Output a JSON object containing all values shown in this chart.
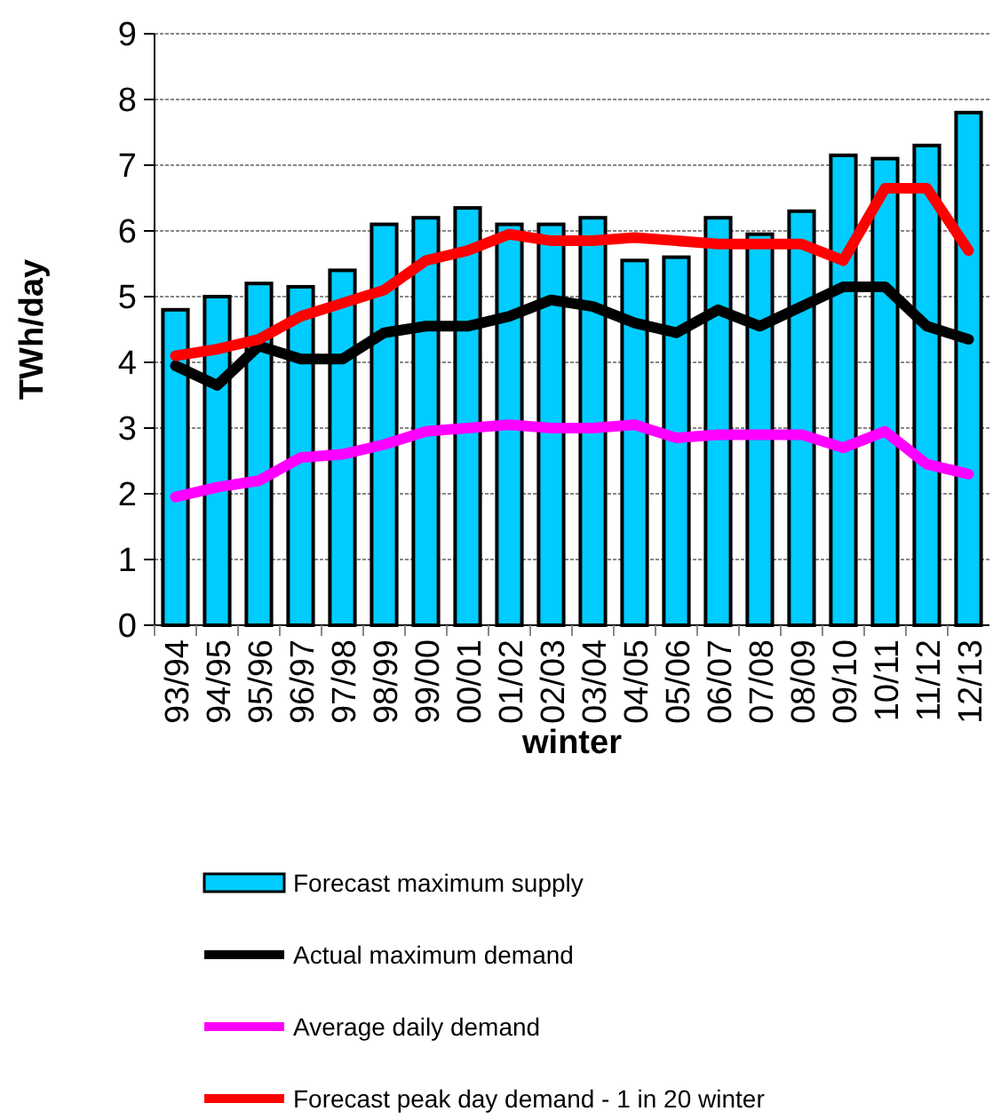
{
  "chart_data": {
    "type": "bar",
    "xlabel": "winter",
    "ylabel": "TWh/day",
    "categories": [
      "93/94",
      "94/95",
      "95/96",
      "96/97",
      "97/98",
      "98/99",
      "99/00",
      "00/01",
      "01/02",
      "02/03",
      "03/04",
      "04/05",
      "05/06",
      "06/07",
      "07/08",
      "08/09",
      "09/10",
      "10/11",
      "11/12",
      "12/13"
    ],
    "series": [
      {
        "name": "Forecast maximum supply",
        "color": "#00ccff",
        "values": [
          4.8,
          5.0,
          5.2,
          5.15,
          5.4,
          6.1,
          6.2,
          6.35,
          6.1,
          6.1,
          6.2,
          5.55,
          5.6,
          6.2,
          5.95,
          6.3,
          7.15,
          7.1,
          7.3,
          7.8
        ]
      },
      {
        "name": "Actual maximum demand",
        "type": "line",
        "color": "#000000",
        "values": [
          3.95,
          3.65,
          4.25,
          4.05,
          4.05,
          4.45,
          4.55,
          4.55,
          4.7,
          4.95,
          4.85,
          4.6,
          4.45,
          4.8,
          4.55,
          4.85,
          5.15,
          5.15,
          4.55,
          4.35
        ]
      },
      {
        "name": "Average daily demand",
        "type": "line",
        "color": "#ff00ff",
        "values": [
          1.95,
          2.1,
          2.2,
          2.55,
          2.6,
          2.75,
          2.95,
          3.0,
          3.05,
          3.0,
          3.0,
          3.05,
          2.85,
          2.9,
          2.9,
          2.9,
          2.7,
          2.95,
          2.45,
          2.3
        ]
      },
      {
        "name": "Forecast peak day demand - 1 in 20 winter",
        "type": "line",
        "color": "#ff0000",
        "values": [
          4.1,
          4.2,
          4.35,
          4.7,
          4.9,
          5.1,
          5.55,
          5.7,
          5.95,
          5.85,
          5.85,
          5.9,
          5.85,
          5.8,
          5.8,
          5.8,
          5.55,
          6.65,
          6.65,
          5.7
        ]
      }
    ],
    "ylim": [
      0,
      9
    ],
    "yticks": [
      0,
      1,
      2,
      3,
      4,
      5,
      6,
      7,
      8,
      9
    ],
    "grid": "y",
    "legend": "bottom"
  }
}
